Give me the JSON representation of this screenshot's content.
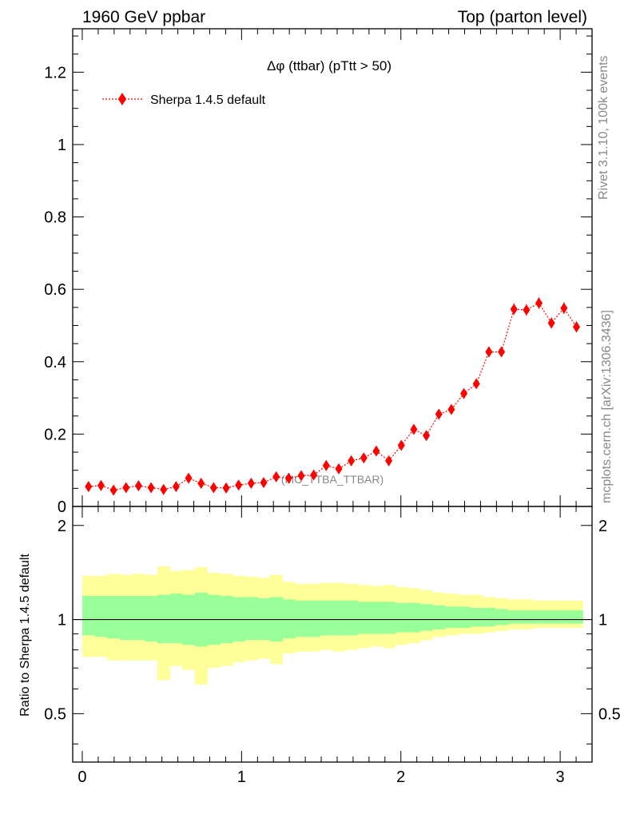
{
  "header": {
    "left": "1960 GeV ppbar",
    "right": "Top (parton level)"
  },
  "side": {
    "rivet": "Rivet 3.1.10,  100k events",
    "mcplots": "mcplots.cern.ch [arXiv:1306.3436]"
  },
  "chart_data": [
    {
      "type": "scatter",
      "title": "Δφ (ttbar) (pTtt > 50)",
      "watermark": "(MC_TTBA_TTBAR)",
      "ylim": [
        0,
        1.32
      ],
      "xlim": [
        -0.06,
        3.2
      ],
      "yticks": [
        0,
        0.2,
        0.4,
        0.6,
        0.8,
        1,
        1.2
      ],
      "ytick_labels": [
        "0",
        "0.2",
        "0.4",
        "0.6",
        "0.8",
        "1",
        "1.2"
      ],
      "legend": "top-left",
      "series": [
        {
          "name": "Sherpa 1.4.5 default",
          "color": "#ff0000",
          "marker": "diamond",
          "line": "dotted",
          "x": [
            0.0393,
            0.1178,
            0.1963,
            0.2749,
            0.3534,
            0.432,
            0.5105,
            0.589,
            0.6676,
            0.7461,
            0.8247,
            0.9032,
            0.9817,
            1.0603,
            1.1388,
            1.2174,
            1.2959,
            1.3744,
            1.453,
            1.5315,
            1.6101,
            1.6886,
            1.7671,
            1.8457,
            1.9242,
            2.0028,
            2.0813,
            2.1598,
            2.2384,
            2.3169,
            2.3955,
            2.474,
            2.5525,
            2.6311,
            2.7096,
            2.7882,
            2.8667,
            2.9452,
            3.0238,
            3.1023
          ],
          "y": [
            0.055,
            0.058,
            0.045,
            0.052,
            0.057,
            0.052,
            0.047,
            0.055,
            0.078,
            0.064,
            0.052,
            0.051,
            0.059,
            0.064,
            0.066,
            0.082,
            0.078,
            0.085,
            0.087,
            0.113,
            0.104,
            0.126,
            0.134,
            0.153,
            0.126,
            0.169,
            0.213,
            0.196,
            0.255,
            0.268,
            0.312,
            0.339,
            0.427,
            0.427,
            0.545,
            0.543,
            0.562,
            0.507,
            0.548,
            0.496
          ],
          "yerr": [
            0.006,
            0.006,
            0.006,
            0.006,
            0.006,
            0.006,
            0.006,
            0.006,
            0.007,
            0.007,
            0.006,
            0.006,
            0.006,
            0.006,
            0.006,
            0.007,
            0.007,
            0.007,
            0.007,
            0.008,
            0.008,
            0.008,
            0.008,
            0.009,
            0.008,
            0.009,
            0.01,
            0.01,
            0.011,
            0.011,
            0.012,
            0.012,
            0.014,
            0.014,
            0.016,
            0.016,
            0.016,
            0.015,
            0.016,
            0.015
          ]
        }
      ]
    },
    {
      "type": "area",
      "ylabel": "Ratio to Sherpa 1.4.5 default",
      "ylim": [
        0.35,
        2.3
      ],
      "yticks": [
        0.5,
        1,
        2
      ],
      "ytick_labels": [
        "0.5",
        "1",
        "2"
      ],
      "xticks": [
        0,
        1,
        2,
        3
      ],
      "xtick_labels": [
        "0",
        "1",
        "2",
        "3"
      ],
      "reference_line": 1,
      "bands": [
        {
          "name": "outer",
          "color": "#ffff99",
          "upper": [
            1.38,
            1.38,
            1.4,
            1.39,
            1.4,
            1.39,
            1.48,
            1.43,
            1.44,
            1.47,
            1.41,
            1.4,
            1.38,
            1.37,
            1.36,
            1.39,
            1.32,
            1.3,
            1.3,
            1.31,
            1.31,
            1.3,
            1.29,
            1.28,
            1.29,
            1.27,
            1.26,
            1.24,
            1.22,
            1.21,
            1.2,
            1.2,
            1.18,
            1.17,
            1.16,
            1.16,
            1.15,
            1.15,
            1.15,
            1.15
          ],
          "lower": [
            0.76,
            0.76,
            0.74,
            0.74,
            0.74,
            0.74,
            0.64,
            0.71,
            0.69,
            0.62,
            0.7,
            0.71,
            0.73,
            0.74,
            0.75,
            0.72,
            0.78,
            0.79,
            0.79,
            0.8,
            0.79,
            0.8,
            0.81,
            0.82,
            0.81,
            0.83,
            0.84,
            0.86,
            0.88,
            0.89,
            0.9,
            0.9,
            0.91,
            0.92,
            0.93,
            0.93,
            0.94,
            0.94,
            0.94,
            0.94
          ]
        },
        {
          "name": "inner",
          "color": "#99ff99",
          "upper": [
            1.19,
            1.19,
            1.19,
            1.19,
            1.19,
            1.19,
            1.2,
            1.21,
            1.2,
            1.22,
            1.2,
            1.19,
            1.18,
            1.18,
            1.17,
            1.18,
            1.16,
            1.15,
            1.15,
            1.15,
            1.15,
            1.15,
            1.14,
            1.14,
            1.14,
            1.13,
            1.13,
            1.12,
            1.11,
            1.1,
            1.1,
            1.09,
            1.09,
            1.08,
            1.07,
            1.07,
            1.07,
            1.07,
            1.07,
            1.07
          ],
          "lower": [
            0.89,
            0.88,
            0.87,
            0.86,
            0.86,
            0.85,
            0.84,
            0.84,
            0.83,
            0.82,
            0.83,
            0.84,
            0.85,
            0.86,
            0.86,
            0.85,
            0.87,
            0.88,
            0.88,
            0.89,
            0.89,
            0.89,
            0.9,
            0.9,
            0.9,
            0.91,
            0.91,
            0.92,
            0.93,
            0.94,
            0.94,
            0.95,
            0.95,
            0.96,
            0.97,
            0.97,
            0.97,
            0.97,
            0.97,
            0.97
          ]
        }
      ]
    }
  ]
}
